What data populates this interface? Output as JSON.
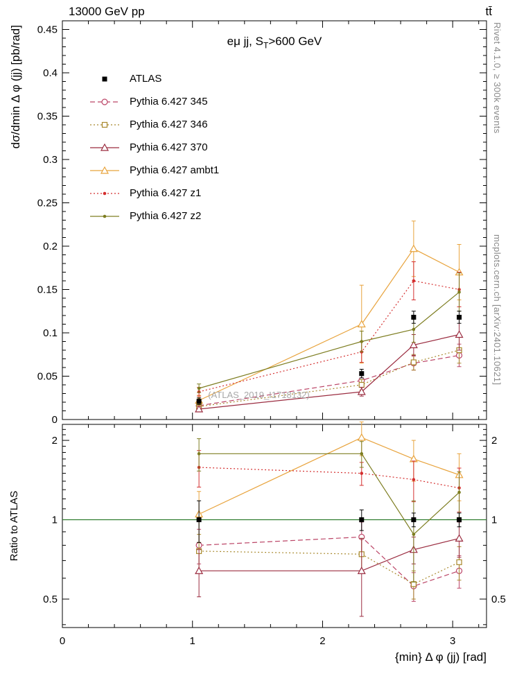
{
  "header": {
    "collision": "13000 GeV pp",
    "process": "tt̄"
  },
  "watermarks": {
    "rivet": "Rivet 4.1.0, ≥ 300k events",
    "mcplots": "mcplots.cern.ch [arXiv:2401.10621]",
    "analysis": "(ATLAS_2019_I1718132)"
  },
  "chart_data": {
    "type": "line",
    "title": "eμ jj, S_T>600 GeV",
    "title_parts": {
      "pre": "eμ jj, S",
      "sub": "T",
      "post": ">600 GeV"
    },
    "xlabel": "{min} Δ φ (jj) [rad]",
    "ylabel": "dσ/dmin Δ φ (jj) [pb/rad]",
    "ratio_label": "Ratio to ATLAS",
    "xlim": [
      0,
      3.26
    ],
    "ylim": [
      0,
      0.46
    ],
    "ratio_ylim": [
      0.39,
      2.3
    ],
    "ratio_scale": "log",
    "xticks": [
      0,
      1,
      2,
      3
    ],
    "yticks": [
      0,
      0.05,
      0.1,
      0.15,
      0.2,
      0.25,
      0.3,
      0.35,
      0.4,
      0.45
    ],
    "ratio_yticks": [
      0.5,
      1,
      2
    ],
    "grid": false,
    "legend_position": "upper-left",
    "unity_line_color": "#2f7d2f",
    "x": [
      1.05,
      2.3,
      2.7,
      3.05
    ],
    "series": [
      {
        "name": "ATLAS",
        "color": "#000000",
        "marker": "filled-square",
        "line": "none",
        "values": [
          0.021,
          0.053,
          0.118,
          0.118
        ],
        "errors": [
          0.004,
          0.005,
          0.007,
          0.007
        ],
        "ratio": [
          1,
          1,
          1,
          1
        ],
        "ratio_errors": [
          0.18,
          0.09,
          0.06,
          0.06
        ]
      },
      {
        "name": "Pythia 6.427 345",
        "color": "#bb4466",
        "marker": "open-circle",
        "line": "dashed",
        "values": [
          0.016,
          0.045,
          0.065,
          0.074
        ],
        "errors": [
          0.003,
          0.006,
          0.008,
          0.013
        ],
        "ratio": [
          0.8,
          0.86,
          0.56,
          0.64
        ],
        "ratio_errors": [
          0.12,
          0.12,
          0.07,
          0.09
        ]
      },
      {
        "name": "Pythia 6.427 346",
        "color": "#a8882c",
        "marker": "open-square",
        "line": "dotted",
        "values": [
          0.015,
          0.04,
          0.066,
          0.08
        ],
        "errors": [
          0.003,
          0.006,
          0.009,
          0.015
        ],
        "ratio": [
          0.76,
          0.74,
          0.57,
          0.69
        ],
        "ratio_errors": [
          0.12,
          0.11,
          0.07,
          0.1
        ]
      },
      {
        "name": "Pythia 6.427 370",
        "color": "#9a2b3f",
        "marker": "open-triangle",
        "line": "solid",
        "values": [
          0.012,
          0.032,
          0.086,
          0.098
        ],
        "errors": [
          0.003,
          0.005,
          0.012,
          0.018
        ],
        "ratio": [
          0.64,
          0.64,
          0.77,
          0.85
        ],
        "ratio_errors": [
          0.13,
          0.21,
          0.09,
          0.13
        ]
      },
      {
        "name": "Pythia 6.427 ambt1",
        "color": "#e8a33c",
        "marker": "open-triangle",
        "line": "solid",
        "values": [
          0.022,
          0.11,
          0.197,
          0.17
        ],
        "errors": [
          0.006,
          0.045,
          0.032,
          0.032
        ],
        "ratio": [
          1.05,
          2.05,
          1.7,
          1.48
        ],
        "ratio_errors": [
          0.23,
          0.3,
          0.3,
          0.3
        ]
      },
      {
        "name": "Pythia 6.427 z1",
        "color": "#d42e2e",
        "marker": "dot",
        "line": "dotted",
        "values": [
          0.032,
          0.078,
          0.16,
          0.15
        ],
        "errors": [
          0.005,
          0.012,
          0.022,
          0.02
        ],
        "ratio": [
          1.58,
          1.5,
          1.42,
          1.32
        ],
        "ratio_errors": [
          0.25,
          0.15,
          0.25,
          0.25
        ]
      },
      {
        "name": "Pythia 6.427 z2",
        "color": "#7d7d20",
        "marker": "dot",
        "line": "solid",
        "values": [
          0.036,
          0.09,
          0.104,
          0.147
        ],
        "errors": [
          0.005,
          0.012,
          0.015,
          0.022
        ],
        "ratio": [
          1.78,
          1.78,
          0.88,
          1.27
        ],
        "ratio_errors": [
          0.25,
          0.2,
          0.3,
          0.25
        ]
      }
    ]
  }
}
